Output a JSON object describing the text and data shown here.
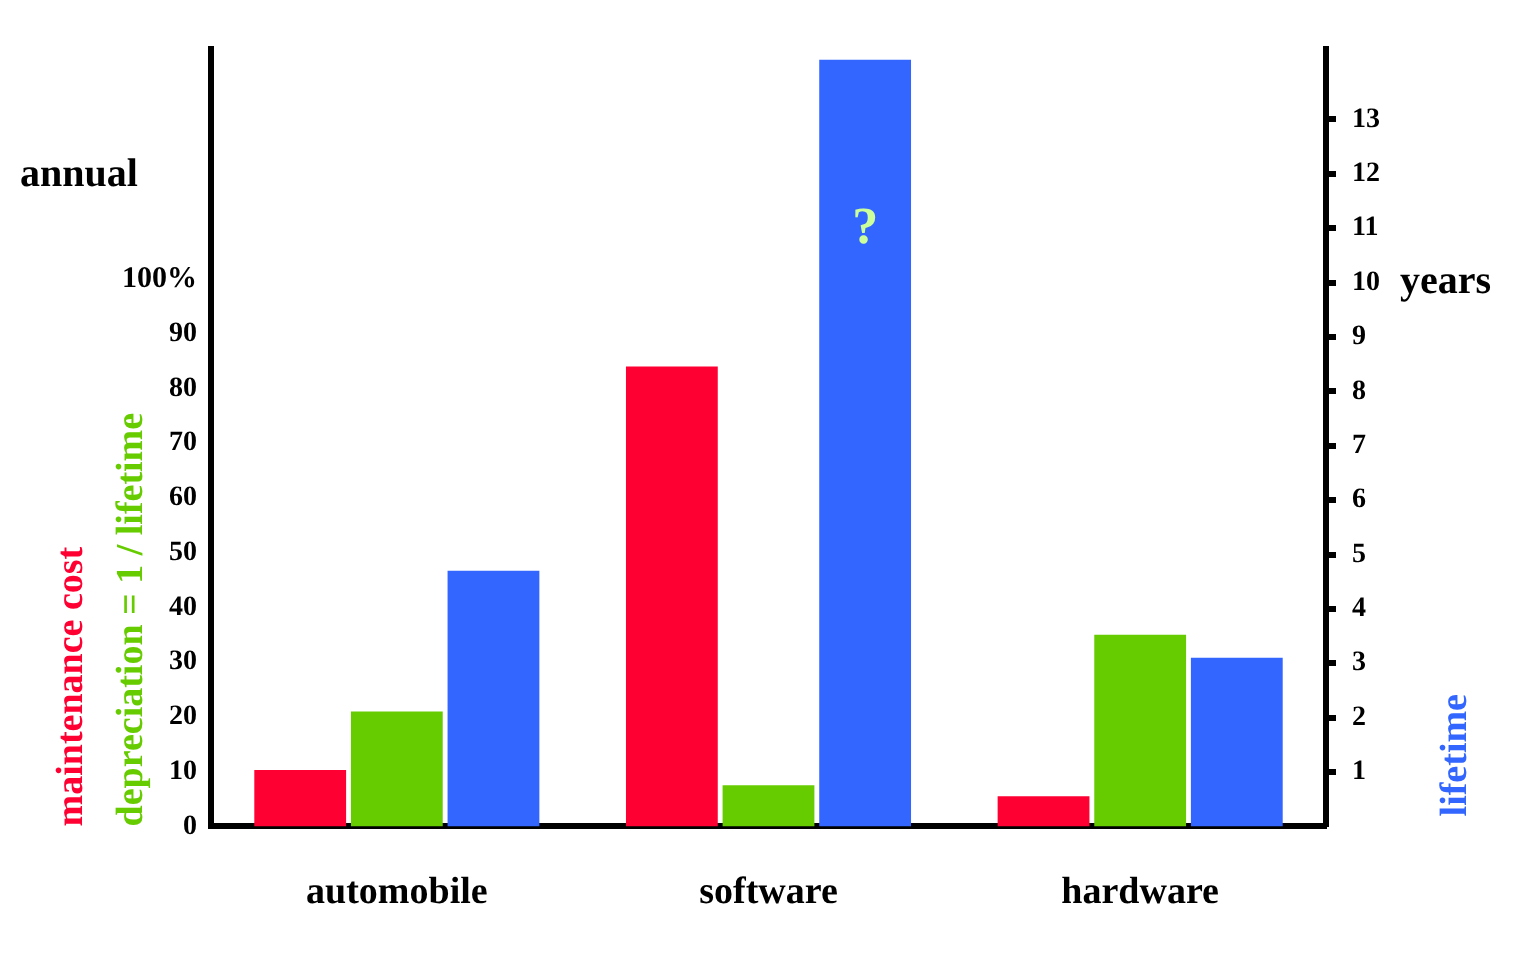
{
  "chart_data": {
    "type": "bar",
    "ylabel": "annual",
    "y2label": "years",
    "categories": [
      "automobile",
      "software",
      "hardware"
    ],
    "series": [
      {
        "name": "maintenance cost",
        "color": "#ff0033",
        "values": [
          10.3,
          84,
          5.5
        ]
      },
      {
        "name": "depreciation = 1 / lifetime",
        "color": "#66cc00",
        "values": [
          21,
          7.5,
          35
        ]
      },
      {
        "name": "lifetime",
        "color": "#3366ff",
        "values": [
          4.7,
          14.1,
          3.1
        ],
        "axis": "y2"
      }
    ],
    "ylim": [
      0,
      142
    ],
    "yticks": [
      0,
      10,
      20,
      30,
      40,
      50,
      60,
      70,
      80,
      90,
      {
        "value": 100,
        "label": "100%"
      }
    ],
    "y2lim": [
      0,
      14.3
    ],
    "y2ticks": [
      1,
      2,
      3,
      4,
      5,
      6,
      7,
      8,
      9,
      10,
      11,
      12,
      13
    ],
    "annotations": [
      "?"
    ],
    "grid": false,
    "legend": false
  }
}
